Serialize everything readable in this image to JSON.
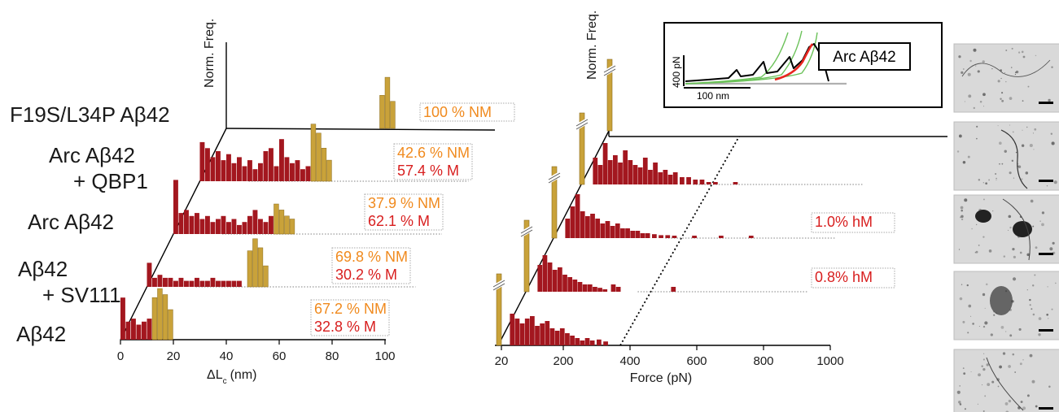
{
  "colors": {
    "non_mechanostable": "#c9a23a",
    "mechanostable": "#a3171f",
    "nm_text": "#f08a1e",
    "m_text": "#d81e1e",
    "inset_black": "#000000",
    "inset_green": "#6cc25a",
    "inset_red": "#e8251f",
    "inset_gray": "#b0b0b0"
  },
  "chart_data": [
    {
      "type": "bar",
      "panel": "contour-length",
      "xlabel": "ΔL",
      "xlabel_sub": "c",
      "xlabel_unit": "(nm)",
      "ylabel": "Norm. Freq.",
      "xlim": [
        0,
        100
      ],
      "xticks": [
        "0",
        "20",
        "40",
        "60",
        "80",
        "100"
      ],
      "bin_width": 2,
      "rows": [
        {
          "label_lines": [
            "F19S/L34P Aβ42"
          ],
          "nm_text": "100 % NM",
          "m_text": "",
          "nm_bins": [
            [
              0,
              0
            ],
            [
              58,
              0.55
            ],
            [
              60,
              0.85
            ],
            [
              62,
              0.45
            ]
          ],
          "m_bins": []
        },
        {
          "label_lines": [
            "Arc Aβ42",
            "+ QBP1"
          ],
          "nm_text": "42.6 % NM",
          "m_text": "57.4 % M",
          "nm_bins": [
            [
              42,
              0.95
            ],
            [
              44,
              0.8
            ],
            [
              46,
              0.55
            ],
            [
              48,
              0.35
            ]
          ],
          "m_bins": [
            [
              0,
              0.65
            ],
            [
              2,
              0.55
            ],
            [
              4,
              0.4
            ],
            [
              6,
              0.5
            ],
            [
              8,
              0.35
            ],
            [
              10,
              0.45
            ],
            [
              12,
              0.3
            ],
            [
              14,
              0.4
            ],
            [
              16,
              0.25
            ],
            [
              18,
              0.35
            ],
            [
              20,
              0.2
            ],
            [
              22,
              0.3
            ],
            [
              24,
              0.5
            ],
            [
              26,
              0.55
            ],
            [
              28,
              0.25
            ],
            [
              30,
              0.7
            ],
            [
              32,
              0.4
            ],
            [
              34,
              0.3
            ],
            [
              36,
              0.35
            ],
            [
              38,
              0.2
            ],
            [
              40,
              0.25
            ]
          ]
        },
        {
          "label_lines": [
            "Arc Aβ42"
          ],
          "nm_text": "37.9 % NM",
          "m_text": "62.1 % M",
          "nm_bins": [
            [
              38,
              0.5
            ],
            [
              40,
              0.4
            ],
            [
              42,
              0.3
            ],
            [
              44,
              0.25
            ]
          ],
          "m_bins": [
            [
              0,
              0.9
            ],
            [
              2,
              0.35
            ],
            [
              4,
              0.4
            ],
            [
              6,
              0.3
            ],
            [
              8,
              0.35
            ],
            [
              10,
              0.25
            ],
            [
              12,
              0.3
            ],
            [
              14,
              0.2
            ],
            [
              16,
              0.25
            ],
            [
              18,
              0.3
            ],
            [
              20,
              0.2
            ],
            [
              22,
              0.25
            ],
            [
              24,
              0.15
            ],
            [
              26,
              0.2
            ],
            [
              28,
              0.3
            ],
            [
              30,
              0.4
            ],
            [
              32,
              0.25
            ],
            [
              34,
              0.2
            ],
            [
              36,
              0.3
            ]
          ]
        },
        {
          "label_lines": [
            "Aβ42",
            "+ SV111"
          ],
          "nm_text": "69.8 % NM",
          "m_text": "30.2 % M",
          "nm_bins": [
            [
              38,
              0.6
            ],
            [
              40,
              0.8
            ],
            [
              42,
              0.65
            ],
            [
              44,
              0.35
            ]
          ],
          "m_bins": [
            [
              0,
              0.4
            ],
            [
              2,
              0.15
            ],
            [
              4,
              0.2
            ],
            [
              6,
              0.15
            ],
            [
              8,
              0.15
            ],
            [
              10,
              0.1
            ],
            [
              12,
              0.15
            ],
            [
              14,
              0.1
            ],
            [
              16,
              0.1
            ],
            [
              18,
              0.15
            ],
            [
              20,
              0.1
            ],
            [
              22,
              0.1
            ],
            [
              24,
              0.15
            ],
            [
              26,
              0.1
            ],
            [
              28,
              0.1
            ],
            [
              30,
              0.1
            ],
            [
              32,
              0.1
            ],
            [
              34,
              0.1
            ]
          ]
        },
        {
          "label_lines": [
            "Aβ42"
          ],
          "nm_text": "67.2 % NM",
          "m_text": "32.8 % M",
          "nm_bins": [
            [
              12,
              0.7
            ],
            [
              14,
              0.85
            ],
            [
              16,
              0.75
            ],
            [
              18,
              0.5
            ]
          ],
          "m_bins": [
            [
              0,
              0.7
            ],
            [
              2,
              0.3
            ],
            [
              4,
              0.35
            ],
            [
              6,
              0.25
            ],
            [
              8,
              0.3
            ],
            [
              10,
              0.35
            ]
          ]
        }
      ]
    },
    {
      "type": "bar",
      "panel": "force",
      "xlabel": "Force (pN)",
      "ylabel": "Norm. Freq.",
      "xlim": [
        0,
        1000
      ],
      "xticks": [
        "20",
        "200",
        "400",
        "600",
        "800",
        "1000"
      ],
      "xtick_values": [
        20,
        200,
        400,
        600,
        800,
        1000
      ],
      "bin_width": 14,
      "rows": [
        {
          "hm_text": "",
          "nm_peak": 1.0,
          "m_bins": []
        },
        {
          "hm_text": "",
          "nm_peak": 1.0,
          "m_bins": [
            [
              40,
              0.55
            ],
            [
              55,
              0.4
            ],
            [
              70,
              0.85
            ],
            [
              85,
              0.5
            ],
            [
              100,
              0.6
            ],
            [
              115,
              0.45
            ],
            [
              130,
              0.7
            ],
            [
              145,
              0.5
            ],
            [
              160,
              0.4
            ],
            [
              175,
              0.35
            ],
            [
              190,
              0.55
            ],
            [
              205,
              0.3
            ],
            [
              220,
              0.45
            ],
            [
              235,
              0.25
            ],
            [
              250,
              0.3
            ],
            [
              265,
              0.2
            ],
            [
              280,
              0.25
            ],
            [
              300,
              0.15
            ],
            [
              320,
              0.15
            ],
            [
              340,
              0.1
            ],
            [
              360,
              0.1
            ],
            [
              380,
              0.05
            ],
            [
              400,
              0.05
            ],
            [
              460,
              0.05
            ]
          ]
        },
        {
          "hm_text": "1.0% hM",
          "nm_peak": 1.0,
          "m_bins": [
            [
              40,
              0.4
            ],
            [
              55,
              0.65
            ],
            [
              70,
              0.9
            ],
            [
              85,
              0.55
            ],
            [
              100,
              0.45
            ],
            [
              115,
              0.5
            ],
            [
              130,
              0.4
            ],
            [
              145,
              0.3
            ],
            [
              160,
              0.35
            ],
            [
              175,
              0.25
            ],
            [
              190,
              0.3
            ],
            [
              205,
              0.2
            ],
            [
              220,
              0.2
            ],
            [
              235,
              0.15
            ],
            [
              250,
              0.15
            ],
            [
              265,
              0.1
            ],
            [
              280,
              0.1
            ],
            [
              300,
              0.08
            ],
            [
              320,
              0.06
            ],
            [
              340,
              0.06
            ],
            [
              360,
              0.05
            ],
            [
              420,
              0.05
            ],
            [
              500,
              0.05
            ],
            [
              590,
              0.05
            ]
          ]
        },
        {
          "hm_text": "0.8% hM",
          "nm_peak": 1.0,
          "m_bins": [
            [
              40,
              0.55
            ],
            [
              55,
              0.75
            ],
            [
              70,
              0.6
            ],
            [
              85,
              0.45
            ],
            [
              100,
              0.5
            ],
            [
              115,
              0.35
            ],
            [
              130,
              0.3
            ],
            [
              145,
              0.25
            ],
            [
              160,
              0.2
            ],
            [
              175,
              0.15
            ],
            [
              190,
              0.15
            ],
            [
              205,
              0.1
            ],
            [
              220,
              0.08
            ],
            [
              235,
              0.05
            ],
            [
              260,
              0.15
            ],
            [
              275,
              0.1
            ],
            [
              440,
              0.1
            ]
          ]
        },
        {
          "hm_text": "",
          "nm_peak": 1.0,
          "m_bins": [
            [
              40,
              0.65
            ],
            [
              55,
              0.55
            ],
            [
              70,
              0.45
            ],
            [
              85,
              0.55
            ],
            [
              100,
              0.6
            ],
            [
              115,
              0.4
            ],
            [
              130,
              0.45
            ],
            [
              145,
              0.5
            ],
            [
              160,
              0.35
            ],
            [
              175,
              0.3
            ],
            [
              190,
              0.35
            ],
            [
              205,
              0.25
            ],
            [
              220,
              0.2
            ],
            [
              235,
              0.15
            ],
            [
              250,
              0.1
            ],
            [
              265,
              0.15
            ],
            [
              280,
              0.1
            ],
            [
              300,
              0.12
            ],
            [
              320,
              0.08
            ]
          ]
        }
      ]
    },
    {
      "type": "line",
      "panel": "inset",
      "title": "Arc Aβ42",
      "ylabel": "400 pN",
      "scalebar_label": "100 nm"
    }
  ],
  "micrographs": [
    {
      "name": "micrograph-1"
    },
    {
      "name": "micrograph-2"
    },
    {
      "name": "micrograph-3"
    },
    {
      "name": "micrograph-4"
    },
    {
      "name": "micrograph-5"
    }
  ]
}
